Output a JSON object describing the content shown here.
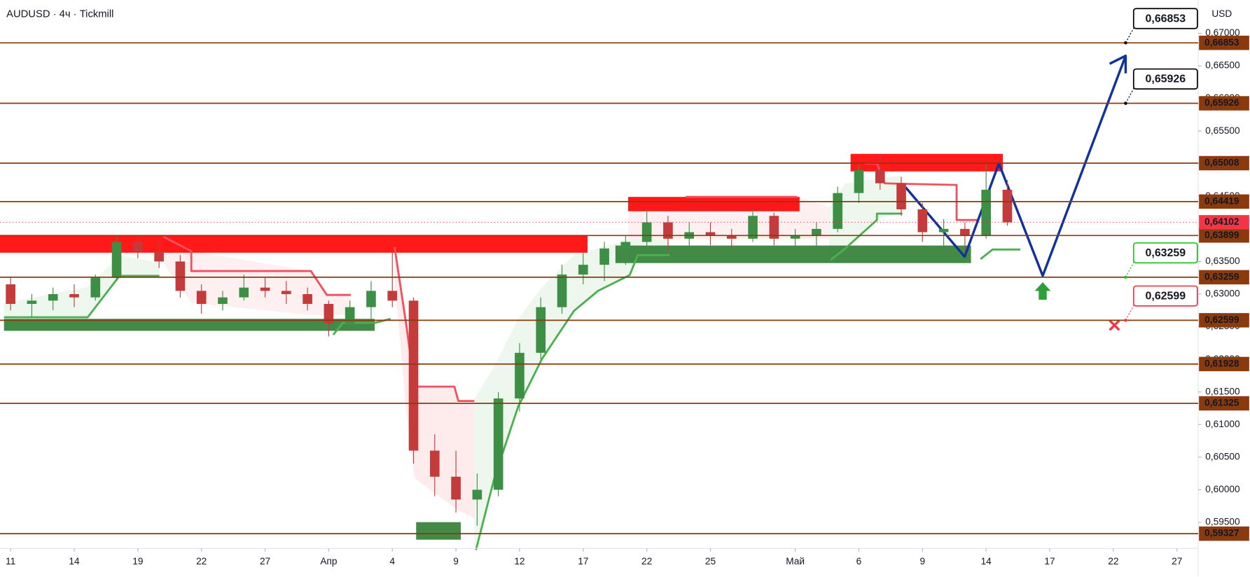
{
  "chart_data": {
    "type": "candlestick",
    "title": "AUDUSD · 4ч · Tickmill",
    "currency": "USD",
    "xlim": [
      -0.5,
      56
    ],
    "ylim": [
      0.591,
      0.6751
    ],
    "x": [
      0,
      1,
      2,
      3,
      4,
      5,
      6,
      7,
      8,
      9,
      10,
      11,
      12,
      13,
      14,
      15,
      16,
      17,
      18,
      19,
      20,
      21,
      22,
      23,
      24,
      25,
      26,
      27,
      28,
      29,
      30,
      31,
      32,
      33,
      34,
      35,
      36,
      37,
      38,
      39,
      40,
      41,
      42,
      43,
      44,
      45,
      46,
      47
    ],
    "open": [
      0.6315,
      0.6285,
      0.629,
      0.63,
      0.6295,
      0.6325,
      0.638,
      0.6365,
      0.635,
      0.6305,
      0.6285,
      0.6295,
      0.631,
      0.6305,
      0.63,
      0.6285,
      0.6255,
      0.628,
      0.6305,
      0.629,
      0.606,
      0.602,
      0.5985,
      0.6,
      0.614,
      0.621,
      0.628,
      0.633,
      0.6345,
      0.637,
      0.638,
      0.641,
      0.6385,
      0.6395,
      0.639,
      0.6385,
      0.642,
      0.6385,
      0.639,
      0.64,
      0.6455,
      0.649,
      0.647,
      0.643,
      0.6395,
      0.64,
      0.639,
      0.646
    ],
    "high": [
      0.6325,
      0.63,
      0.631,
      0.6315,
      0.633,
      0.639,
      0.639,
      0.6385,
      0.636,
      0.6315,
      0.6305,
      0.633,
      0.6325,
      0.632,
      0.631,
      0.629,
      0.629,
      0.632,
      0.6365,
      0.6295,
      0.6085,
      0.606,
      0.6025,
      0.615,
      0.6225,
      0.6295,
      0.6345,
      0.6365,
      0.638,
      0.639,
      0.643,
      0.642,
      0.641,
      0.641,
      0.64,
      0.643,
      0.6425,
      0.64,
      0.641,
      0.6465,
      0.65,
      0.6515,
      0.648,
      0.644,
      0.6415,
      0.641,
      0.65,
      0.6475
    ],
    "low": [
      0.6275,
      0.6265,
      0.6275,
      0.628,
      0.629,
      0.632,
      0.6355,
      0.634,
      0.6295,
      0.627,
      0.6275,
      0.629,
      0.6295,
      0.6285,
      0.6275,
      0.6235,
      0.6245,
      0.626,
      0.628,
      0.604,
      0.599,
      0.5965,
      0.5945,
      0.599,
      0.612,
      0.62,
      0.627,
      0.6315,
      0.632,
      0.6345,
      0.637,
      0.6365,
      0.6355,
      0.6375,
      0.637,
      0.638,
      0.6375,
      0.637,
      0.6365,
      0.6395,
      0.644,
      0.646,
      0.642,
      0.638,
      0.637,
      0.6365,
      0.6385,
      0.6405
    ],
    "close": [
      0.6285,
      0.629,
      0.63,
      0.6295,
      0.6325,
      0.638,
      0.6365,
      0.635,
      0.6305,
      0.6285,
      0.6295,
      0.631,
      0.6305,
      0.63,
      0.6285,
      0.6255,
      0.628,
      0.6305,
      0.629,
      0.606,
      0.602,
      0.5985,
      0.6,
      0.614,
      0.621,
      0.628,
      0.633,
      0.6345,
      0.637,
      0.638,
      0.641,
      0.6385,
      0.6395,
      0.639,
      0.6385,
      0.642,
      0.6385,
      0.639,
      0.64,
      0.6455,
      0.649,
      0.647,
      0.643,
      0.6395,
      0.64,
      0.639,
      0.646,
      0.641
    ],
    "up_color": "#3d8f46",
    "down_color": "#c33b3b",
    "xticks": [
      {
        "value": 0,
        "label": "11"
      },
      {
        "value": 3,
        "label": "14"
      },
      {
        "value": 6,
        "label": "19"
      },
      {
        "value": 9,
        "label": "22"
      },
      {
        "value": 12,
        "label": "27"
      },
      {
        "value": 15,
        "label": "Апр"
      },
      {
        "value": 18,
        "label": "4"
      },
      {
        "value": 21,
        "label": "9"
      },
      {
        "value": 24,
        "label": "12"
      },
      {
        "value": 27,
        "label": "17"
      },
      {
        "value": 30,
        "label": "22"
      },
      {
        "value": 33,
        "label": "25"
      },
      {
        "value": 37,
        "label": "Май"
      },
      {
        "value": 40,
        "label": "6"
      },
      {
        "value": 43,
        "label": "9"
      },
      {
        "value": 46,
        "label": "14"
      },
      {
        "value": 49,
        "label": "17"
      },
      {
        "value": 52,
        "label": "22"
      },
      {
        "value": 55,
        "label": "27"
      }
    ],
    "yticks": [
      {
        "value": 0.595,
        "label": "0,59500"
      },
      {
        "value": 0.6,
        "label": "0,60000"
      },
      {
        "value": 0.605,
        "label": "0,60500"
      },
      {
        "value": 0.61,
        "label": "0,61000"
      },
      {
        "value": 0.615,
        "label": "0,61500"
      },
      {
        "value": 0.62,
        "label": "0,62000"
      },
      {
        "value": 0.625,
        "label": "0,62500"
      },
      {
        "value": 0.63,
        "label": "0,63000"
      },
      {
        "value": 0.635,
        "label": "0,63500"
      },
      {
        "value": 0.64,
        "label": "0,64000"
      },
      {
        "value": 0.645,
        "label": "0,64500"
      },
      {
        "value": 0.65,
        "label": "0,65000"
      },
      {
        "value": 0.655,
        "label": "0,65500"
      },
      {
        "value": 0.66,
        "label": "0,66000"
      },
      {
        "value": 0.665,
        "label": "0,66500"
      },
      {
        "value": 0.67,
        "label": "0,67000"
      }
    ],
    "level_color": "#8b3a0e",
    "levels": [
      {
        "value": 0.66853,
        "label": "0,66853"
      },
      {
        "value": 0.65926,
        "label": "0,65926"
      },
      {
        "value": 0.65008,
        "label": "0,65008"
      },
      {
        "value": 0.64419,
        "label": "0,64419"
      },
      {
        "value": 0.63899,
        "label": "0,63899"
      },
      {
        "value": 0.63259,
        "label": "0,63259"
      },
      {
        "value": 0.62599,
        "label": "0,62599"
      },
      {
        "value": 0.61928,
        "label": "0,61928"
      },
      {
        "value": 0.61325,
        "label": "0,61325"
      },
      {
        "value": 0.59327,
        "label": "0,59327"
      }
    ],
    "last_price": {
      "value": 0.64102,
      "label": "0,64102",
      "color": "#f23645"
    },
    "annotations": [
      {
        "value": 0.66853,
        "label": "0,66853",
        "color": "#000000"
      },
      {
        "value": 0.65926,
        "label": "0,65926",
        "color": "#000000"
      },
      {
        "value": 0.63259,
        "label": "0,63259",
        "color": "#22c322"
      },
      {
        "value": 0.62599,
        "label": "0,62599",
        "color": "#f23645"
      }
    ]
  }
}
